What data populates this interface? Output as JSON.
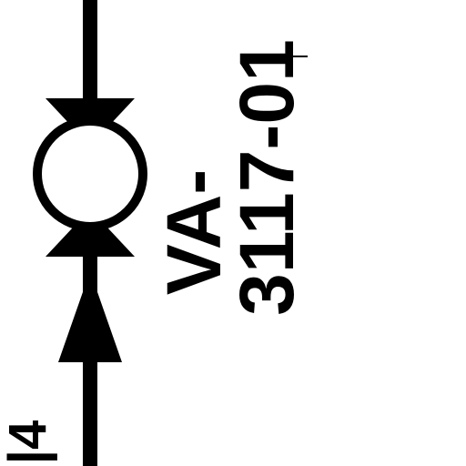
{
  "diagram": {
    "valve_tag_prefix": "VA-",
    "valve_tag_number": "3117-01",
    "line_label": "|4",
    "colors": {
      "stroke": "#000000",
      "fill": "#ffffff",
      "background": "#ffffff"
    }
  }
}
